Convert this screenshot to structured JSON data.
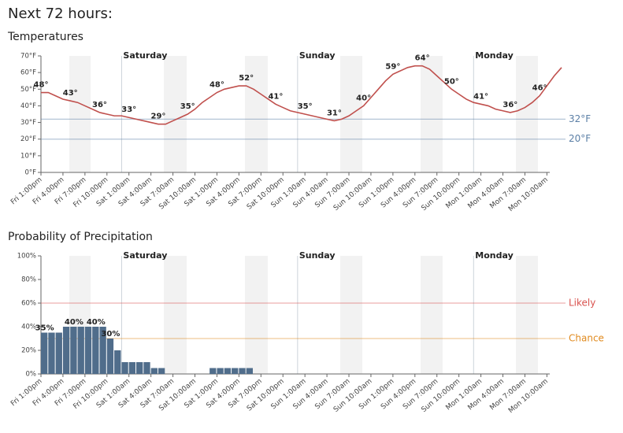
{
  "title": "Next 72 hours:",
  "chart_data": [
    {
      "type": "line",
      "title": "Temperatures",
      "color": "#c0504d",
      "categories": [
        "Fri 1:00pm",
        null,
        null,
        "Fri 4:00pm",
        null,
        null,
        "Fri 7:00pm",
        null,
        null,
        "Fri 10:00pm",
        null,
        null,
        "Sat 1:00am",
        null,
        null,
        "Sat 4:00am",
        null,
        null,
        "Sat 7:00am",
        null,
        null,
        "Sat 10:00am",
        null,
        null,
        "Sat 1:00pm",
        null,
        null,
        "Sat 4:00pm",
        null,
        null,
        "Sat 7:00pm",
        null,
        null,
        "Sat 10:00pm",
        null,
        null,
        "Sun 1:00am",
        null,
        null,
        "Sun 4:00am",
        null,
        null,
        "Sun 7:00am",
        null,
        null,
        "Sun 10:00am",
        null,
        null,
        "Sun 1:00pm",
        null,
        null,
        "Sun 4:00pm",
        null,
        null,
        "Sun 7:00pm",
        null,
        null,
        "Sun 10:00pm",
        null,
        null,
        "Mon 1:00am",
        null,
        null,
        "Mon 4:00am",
        null,
        null,
        "Mon 7:00am",
        null,
        null,
        "Mon 10:00am",
        null,
        null
      ],
      "values": [
        48,
        48,
        46,
        44,
        43,
        42,
        40,
        38,
        36,
        35,
        34,
        34,
        33,
        32,
        31,
        30,
        29,
        29,
        31,
        33,
        35,
        38,
        42,
        45,
        48,
        50,
        51,
        52,
        52,
        50,
        47,
        44,
        41,
        39,
        37,
        36,
        35,
        34,
        33,
        32,
        31,
        32,
        34,
        37,
        40,
        45,
        50,
        55,
        59,
        61,
        63,
        64,
        64,
        62,
        58,
        54,
        50,
        47,
        44,
        42,
        41,
        40,
        38,
        37,
        36,
        37,
        39,
        42,
        46,
        52,
        58,
        63
      ],
      "value_labels": [
        "48°",
        null,
        null,
        null,
        "43°",
        null,
        null,
        null,
        "36°",
        null,
        null,
        null,
        "33°",
        null,
        null,
        null,
        "29°",
        null,
        null,
        null,
        "35°",
        null,
        null,
        null,
        "48°",
        null,
        null,
        null,
        "52°",
        null,
        null,
        null,
        "41°",
        null,
        null,
        null,
        "35°",
        null,
        null,
        null,
        "31°",
        null,
        null,
        null,
        "40°",
        null,
        null,
        null,
        "59°",
        null,
        null,
        null,
        "64°",
        null,
        null,
        null,
        "50°",
        null,
        null,
        null,
        "41°",
        null,
        null,
        null,
        "36°",
        null,
        null,
        null,
        "46°",
        null,
        null,
        null
      ],
      "ylim": [
        0,
        70
      ],
      "yticks": [
        {
          "value": 0,
          "label": "0°F"
        },
        {
          "value": 10,
          "label": "10°F"
        },
        {
          "value": 20,
          "label": "20°F"
        },
        {
          "value": 30,
          "label": "30°F"
        },
        {
          "value": 40,
          "label": "40°F"
        },
        {
          "value": 50,
          "label": "50°F"
        },
        {
          "value": 60,
          "label": "60°F"
        },
        {
          "value": 70,
          "label": "70°F"
        }
      ],
      "reference_lines": [
        {
          "value": 32,
          "label": "32°F",
          "color": "#5b7fa6"
        },
        {
          "value": 20,
          "label": "20°F",
          "color": "#5b7fa6"
        }
      ],
      "day_markers": [
        {
          "label": "Saturday",
          "x": 11
        },
        {
          "label": "Sunday",
          "x": 35
        },
        {
          "label": "Monday",
          "x": 59
        }
      ]
    },
    {
      "type": "bar",
      "title": "Probability of Precipitation",
      "color": "#506d8b",
      "categories": [
        "Fri 1:00pm",
        null,
        null,
        "Fri 4:00pm",
        null,
        null,
        "Fri 7:00pm",
        null,
        null,
        "Fri 10:00pm",
        null,
        null,
        "Sat 1:00am",
        null,
        null,
        "Sat 4:00am",
        null,
        null,
        "Sat 7:00am",
        null,
        null,
        "Sat 10:00am",
        null,
        null,
        "Sat 1:00pm",
        null,
        null,
        "Sat 4:00pm",
        null,
        null,
        "Sat 7:00pm",
        null,
        null,
        "Sat 10:00pm",
        null,
        null,
        "Sun 1:00am",
        null,
        null,
        "Sun 4:00am",
        null,
        null,
        "Sun 7:00am",
        null,
        null,
        "Sun 10:00am",
        null,
        null,
        "Sun 1:00pm",
        null,
        null,
        "Sun 4:00pm",
        null,
        null,
        "Sun 7:00pm",
        null,
        null,
        "Sun 10:00pm",
        null,
        null,
        "Mon 1:00am",
        null,
        null,
        "Mon 4:00am",
        null,
        null,
        "Mon 7:00am",
        null,
        null,
        "Mon 10:00am",
        null,
        null
      ],
      "values": [
        35,
        35,
        35,
        40,
        40,
        40,
        40,
        40,
        40,
        30,
        20,
        10,
        10,
        10,
        10,
        5,
        5,
        0,
        0,
        0,
        0,
        0,
        0,
        5,
        5,
        5,
        5,
        5,
        5,
        0,
        0,
        0,
        0,
        0,
        0,
        0,
        0,
        0,
        0,
        0,
        0,
        0,
        0,
        0,
        0,
        0,
        0,
        0,
        0,
        0,
        0,
        0,
        0,
        0,
        0,
        0,
        0,
        0,
        0,
        0,
        0,
        0,
        0,
        0,
        0,
        0,
        0,
        0,
        0,
        0,
        0,
        0
      ],
      "value_labels": [
        "35%",
        null,
        null,
        null,
        "40%",
        null,
        null,
        "40%",
        null,
        "30%",
        null,
        null,
        null,
        null,
        null,
        null,
        null,
        null,
        null,
        null,
        null,
        null,
        null,
        null,
        null,
        null,
        null,
        null,
        null,
        null,
        null,
        null,
        null,
        null,
        null,
        null,
        null,
        null,
        null,
        null,
        null,
        null,
        null,
        null,
        null,
        null,
        null,
        null,
        null,
        null,
        null,
        null,
        null,
        null,
        null,
        null,
        null,
        null,
        null,
        null,
        null,
        null,
        null,
        null,
        null,
        null,
        null,
        null,
        null,
        null,
        null,
        null
      ],
      "ylim": [
        0,
        100
      ],
      "yticks": [
        {
          "value": 0,
          "label": "0%"
        },
        {
          "value": 20,
          "label": "20%"
        },
        {
          "value": 40,
          "label": "40%"
        },
        {
          "value": 60,
          "label": "60%"
        },
        {
          "value": 80,
          "label": "80%"
        },
        {
          "value": 100,
          "label": "100%"
        }
      ],
      "reference_lines": [
        {
          "value": 60,
          "label": "Likely",
          "color": "#d9534f"
        },
        {
          "value": 30,
          "label": "Chance",
          "color": "#e08a1e"
        }
      ],
      "day_markers": [
        {
          "label": "Saturday",
          "x": 11
        },
        {
          "label": "Sunday",
          "x": 35
        },
        {
          "label": "Monday",
          "x": 59
        }
      ]
    }
  ]
}
